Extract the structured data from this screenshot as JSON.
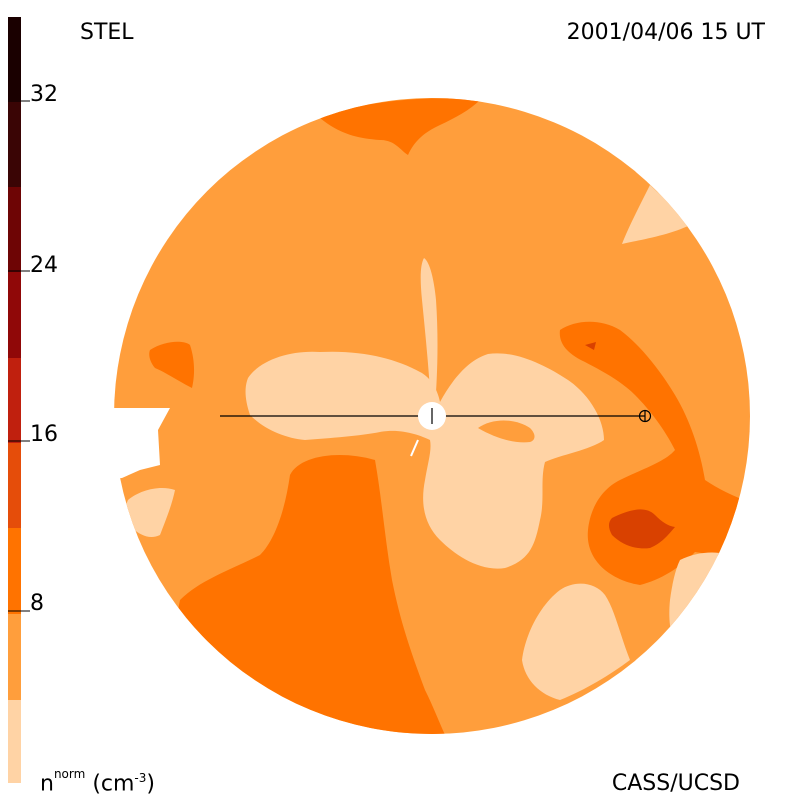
{
  "observatory": "STEL",
  "timestamp": "2001/04/06 15 UT",
  "credit": "CASS/UCSD",
  "unit_label": {
    "base": "n",
    "superscript": "norm",
    "units_open": "(cm",
    "units_exp": "-3",
    "units_close": ")"
  },
  "colorbar": {
    "ticks": [
      "8",
      "16",
      "24",
      "32"
    ],
    "colors": [
      "#ffd3a5",
      "#ff9e3c",
      "#ff7300",
      "#e54d0a",
      "#c0200e",
      "#900808",
      "#6e0505",
      "#3a0505",
      "#1a0000"
    ]
  },
  "palette": {
    "lightest": "#ffd3a5",
    "light": "#ff9e3c",
    "medium": "#ff7300",
    "dark": "#d94100",
    "sun": "#ffffff"
  }
}
